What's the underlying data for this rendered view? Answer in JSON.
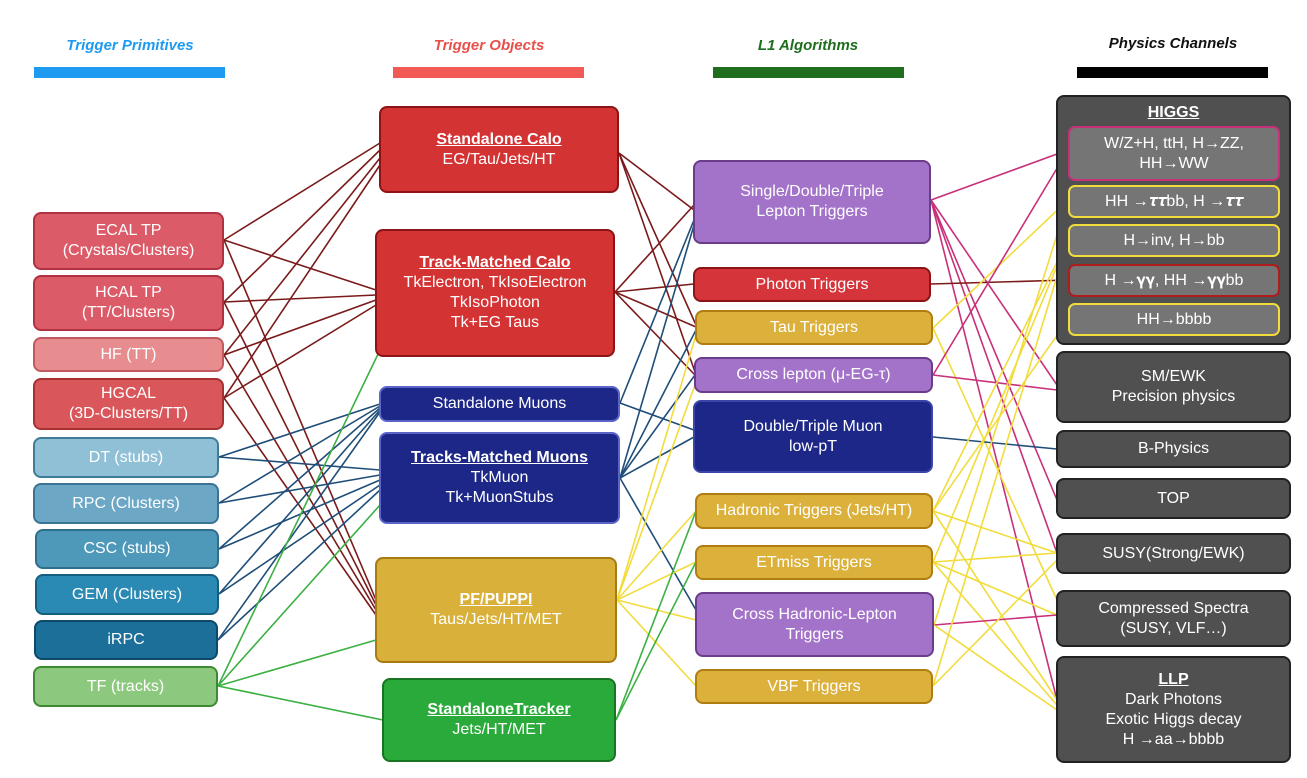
{
  "headers": {
    "primitives": {
      "label": "Trigger Primitives",
      "color": "#1e9af0"
    },
    "objects": {
      "label": "Trigger Objects",
      "color": "#e8504c"
    },
    "algorithms": {
      "label": "L1 Algorithms",
      "color": "#1e6e1e"
    },
    "channels": {
      "label": "Physics Channels",
      "color": "#111111"
    }
  },
  "primitives": [
    {
      "l1": "ECAL TP",
      "l2": "(Crystals/Clusters)"
    },
    {
      "l1": "HCAL TP",
      "l2": "(TT/Clusters)"
    },
    {
      "l1": "HF (TT)"
    },
    {
      "l1": "HGCAL",
      "l2": "(3D-Clusters/TT)"
    },
    {
      "l1": "DT (stubs)"
    },
    {
      "l1": "RPC (Clusters)"
    },
    {
      "l1": "CSC (stubs)"
    },
    {
      "l1": "GEM (Clusters)"
    },
    {
      "l1": "iRPC"
    },
    {
      "l1": "TF (tracks)"
    }
  ],
  "objects": [
    {
      "title": "Standalone Calo",
      "l1": "EG/Tau/Jets/HT"
    },
    {
      "title": "Track-Matched Calo",
      "l1": "TkElectron, TkIsoElectron",
      "l2": "TkIsoPhoton",
      "l3": "Tk+EG Taus"
    },
    {
      "l1": "Standalone Muons"
    },
    {
      "title": "Tracks-Matched Muons",
      "l1": "TkMuon",
      "l2": "Tk+MuonStubs"
    },
    {
      "title": "PF/PUPPI",
      "l1": "Taus/Jets/HT/MET"
    },
    {
      "title": "StandaloneTracker",
      "l1": "Jets/HT/MET"
    }
  ],
  "algorithms": [
    {
      "l1": "Single/Double/Triple",
      "l2": "Lepton Triggers"
    },
    {
      "l1": "Photon Triggers"
    },
    {
      "l1": "Tau Triggers"
    },
    {
      "l1": "Cross lepton (μ-EG-τ)"
    },
    {
      "l1": "Double/Triple Muon",
      "l2": "low-pT"
    },
    {
      "l1": "Hadronic Triggers (Jets/HT)"
    },
    {
      "l1": "ETmiss Triggers"
    },
    {
      "l1": "Cross Hadronic-Lepton",
      "l2": "Triggers"
    },
    {
      "l1": "VBF Triggers"
    }
  ],
  "channels": {
    "higgs": {
      "title": "HIGGS",
      "items": [
        {
          "l1": "W/Z+H, ttH, H→ZZ,",
          "l2": "HH→WW"
        },
        {
          "l1": "HH →𝝉𝝉bb, H →𝝉𝝉"
        },
        {
          "l1": "H→inv, H→bb"
        },
        {
          "l1": "H →𝛄𝛄, HH →𝛄𝛄bb"
        },
        {
          "l1": "HH→bbbb"
        }
      ]
    },
    "others": [
      {
        "l1": "SM/EWK",
        "l2": "Precision physics"
      },
      {
        "l1": "B-Physics"
      },
      {
        "l1": "TOP"
      },
      {
        "l1": "SUSY(Strong/EWK)"
      },
      {
        "l1": "Compressed Spectra",
        "l2": "(SUSY, VLF…)"
      },
      {
        "title": "LLP",
        "l1": "Dark Photons",
        "l2": "Exotic Higgs decay",
        "l3": "H →aa→bbbb"
      }
    ]
  },
  "colors": {
    "calo_link": "#7a1a1a",
    "muon_link": "#1f4e79",
    "track_link": "#3cb043",
    "pf_link": "#f2dc3c",
    "channel_link": "#c8307a",
    "photon_link": "#7a1a1a",
    "bphys_link": "#1f4e79"
  }
}
